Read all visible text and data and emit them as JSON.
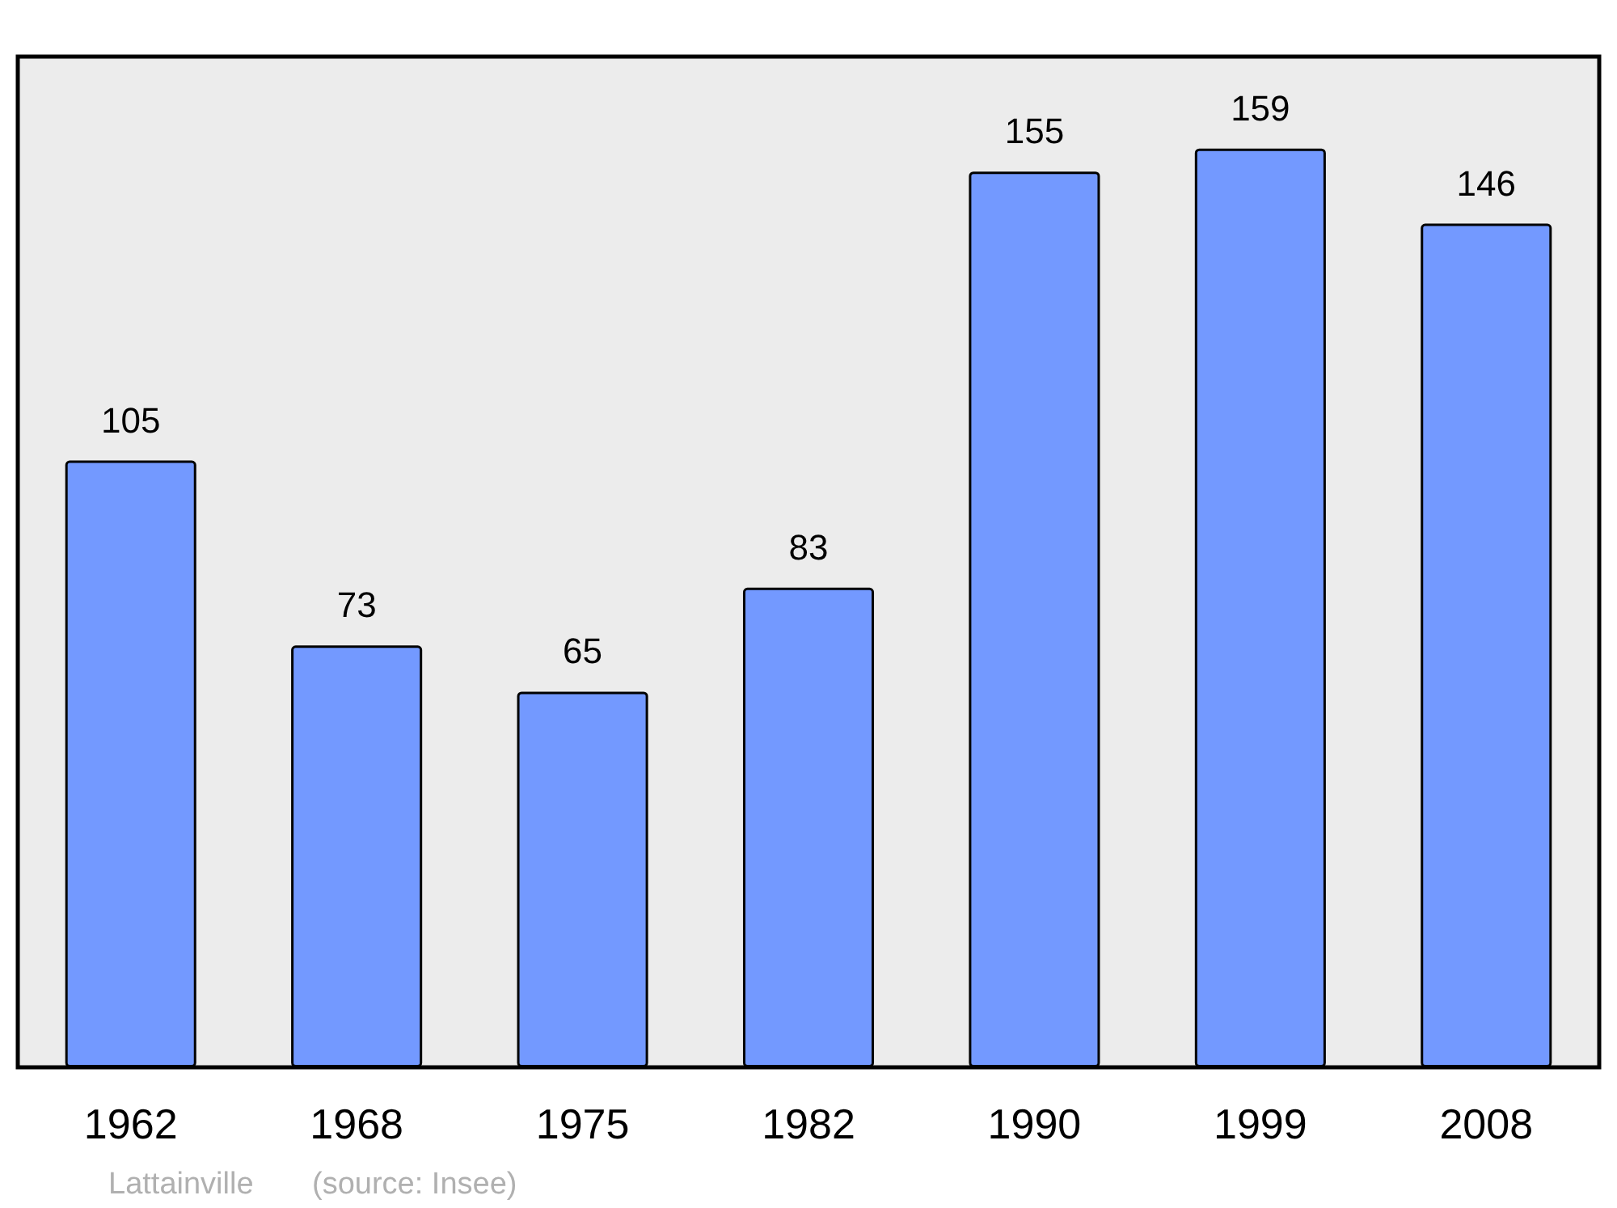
{
  "chart_data": {
    "type": "bar",
    "categories": [
      "1962",
      "1968",
      "1975",
      "1982",
      "1990",
      "1999",
      "2008"
    ],
    "values": [
      105,
      73,
      65,
      83,
      155,
      159,
      146
    ],
    "color": "#7399ff",
    "data_labels": true,
    "grid": false,
    "annotations": [
      "Lattainville",
      "(source: Insee)"
    ]
  }
}
